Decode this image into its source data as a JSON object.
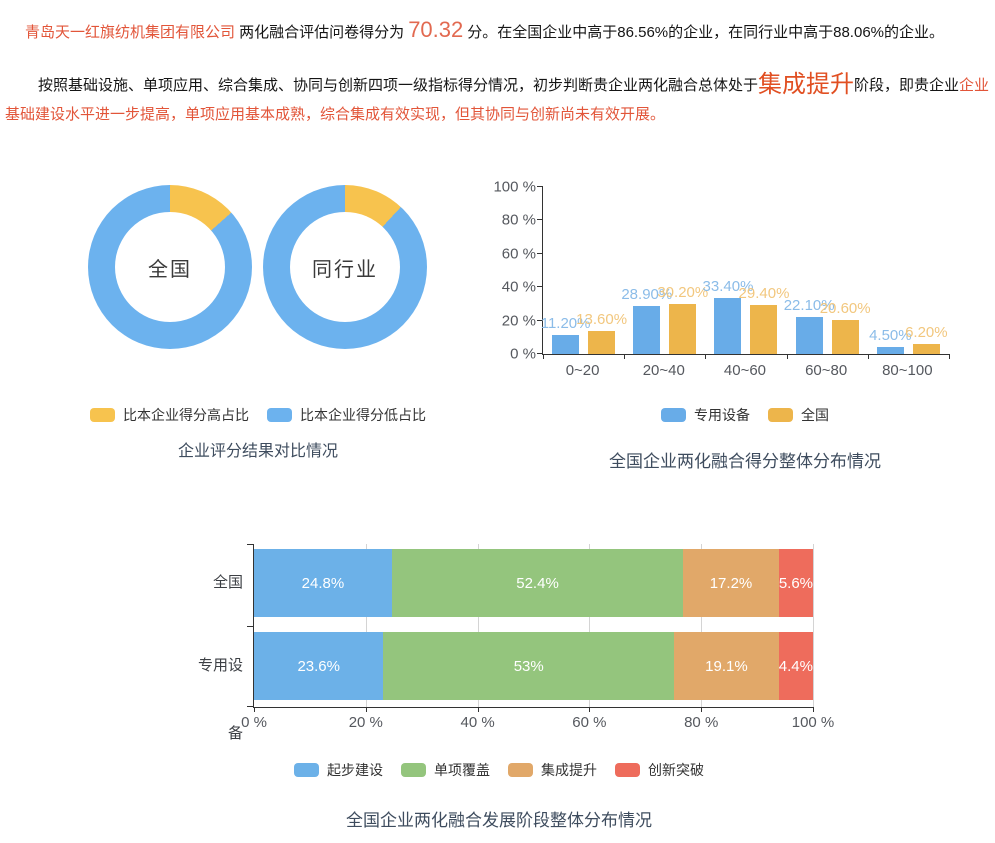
{
  "intro": {
    "p1": [
      {
        "text": "青岛天一红旗纺机集团有限公司 "
      },
      {
        "text": "两化融合评估问卷得分为"
      },
      {
        "text": "70.32"
      },
      {
        "text": "分。在全国企业中高于86.56%的企业，在同行业中高于88.06%的企业。"
      }
    ],
    "p2": [
      {
        "text": "按照基础设施、单项应用、综合集成、协同与创新四项一级指标得分情况，初步判断贵企业两化融合总体处于"
      },
      {
        "text": "集成提升"
      },
      {
        "text": "阶段，即贵企业"
      },
      {
        "text": "企业基础建设水平进一步提高，单项应用基本成熟，综合集成有效实现，但其协同与创新尚未有效开展。"
      }
    ]
  },
  "colors": {
    "highlight_red": "#e25539",
    "score_orange": "#e26950",
    "stage_orange": "#e14f22",
    "body_text": "#151515",
    "title_text": "#3e4c5e",
    "axis_text": "#55585e",
    "axis_line": "#333333",
    "grid_line": "#d4d4d4",
    "donut_yellow": "#f7c34e",
    "donut_blue": "#6cb2ee",
    "bar_blue": "#68ace8",
    "bar_orange": "#edb54b",
    "bar_blue_label": "#8bbce8",
    "bar_orange_label": "#f2c77e",
    "stack_blue": "#6cb1e8",
    "stack_green": "#94c57d",
    "stack_tan": "#e1a869",
    "stack_red": "#ee6c5c"
  },
  "chart_data": [
    {
      "type": "pie",
      "subtype": "double-donut",
      "title": "企业评分结果对比情况",
      "donuts": [
        {
          "center_label": "全国",
          "slices": [
            {
              "name": "比本企业得分高占比",
              "value": 13.44
            },
            {
              "name": "比本企业得分低占比",
              "value": 86.56
            }
          ]
        },
        {
          "center_label": "同行业",
          "slices": [
            {
              "name": "比本企业得分高占比",
              "value": 11.94
            },
            {
              "name": "比本企业得分低占比",
              "value": 88.06
            }
          ]
        }
      ],
      "legend": [
        {
          "label": "比本企业得分高占比",
          "color_key": "donut_yellow"
        },
        {
          "label": "比本企业得分低占比",
          "color_key": "donut_blue"
        }
      ],
      "legend_position": "bottom"
    },
    {
      "type": "bar",
      "title": "全国企业两化融合得分整体分布情况",
      "categories": [
        "0~20",
        "20~40",
        "40~60",
        "60~80",
        "80~100"
      ],
      "series": [
        {
          "name": "专用设备",
          "color_key": "bar_blue",
          "label_color_key": "bar_blue_label",
          "values": [
            11.2,
            28.9,
            33.4,
            22.1,
            4.5
          ],
          "labels": [
            "11.20%",
            "28.90%",
            "33.40%",
            "22.10%",
            "4.50%"
          ]
        },
        {
          "name": "全国",
          "color_key": "bar_orange",
          "label_color_key": "bar_orange_label",
          "values": [
            13.6,
            30.2,
            29.4,
            20.6,
            6.2
          ],
          "labels": [
            "13.60%",
            "30.20%",
            "29.40%",
            "20.60%",
            "6.20%"
          ]
        }
      ],
      "ylabel_ticks": [
        "0 %",
        "20 %",
        "40 %",
        "60 %",
        "80 %",
        "100 %"
      ],
      "ylim": [
        0,
        100
      ],
      "grid": false,
      "legend_position": "bottom"
    },
    {
      "type": "bar",
      "subtype": "horizontal-stacked",
      "title": "全国企业两化融合发展阶段整体分布情况",
      "categories": [
        "全国",
        "专用设备"
      ],
      "series": [
        {
          "name": "起步建设",
          "color_key": "stack_blue",
          "values": [
            24.8,
            23.6
          ],
          "labels": [
            "24.8%",
            "23.6%"
          ]
        },
        {
          "name": "单项覆盖",
          "color_key": "stack_green",
          "values": [
            52.4,
            53
          ],
          "labels": [
            "52.4%",
            "53%"
          ]
        },
        {
          "name": "集成提升",
          "color_key": "stack_tan",
          "values": [
            17.2,
            19.1
          ],
          "labels": [
            "17.2%",
            "19.1%"
          ]
        },
        {
          "name": "创新突破",
          "color_key": "stack_red",
          "values": [
            5.6,
            4.4
          ],
          "labels": [
            "5.6%",
            "4.4%"
          ]
        }
      ],
      "xlabel_ticks": [
        "0 %",
        "20 %",
        "40 %",
        "60 %",
        "80 %",
        "100 %"
      ],
      "xlim": [
        0,
        100
      ],
      "grid": true,
      "legend_position": "bottom"
    }
  ]
}
